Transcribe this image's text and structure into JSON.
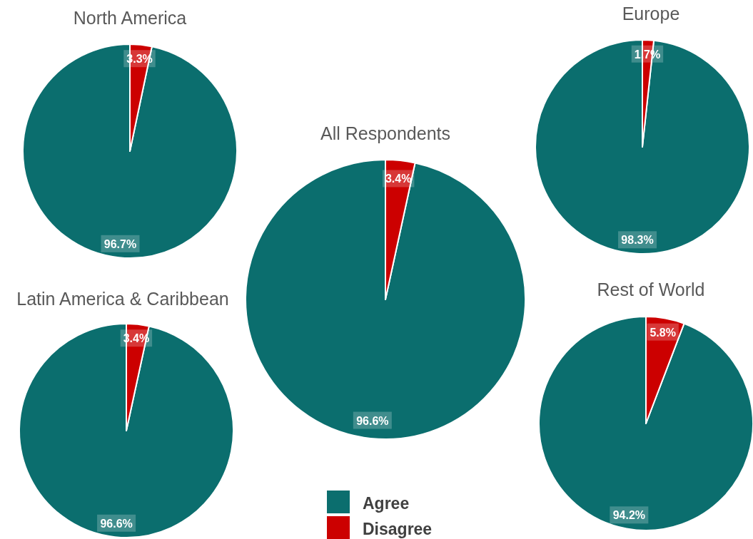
{
  "chart_data": [
    {
      "type": "pie",
      "title": "North America",
      "categories": [
        null,
        null
      ],
      "values": [
        96.7,
        3.3
      ],
      "colors": [
        "#0b6e6e",
        "#cc0000"
      ],
      "value_labels": [
        "96.7%",
        "3.3%"
      ]
    },
    {
      "type": "pie",
      "title": "Europe",
      "categories": [
        null,
        null
      ],
      "values": [
        98.3,
        1.7
      ],
      "colors": [
        "#0b6e6e",
        "#cc0000"
      ],
      "value_labels": [
        "98.3%",
        "1.7%"
      ]
    },
    {
      "type": "pie",
      "title": "All Respondents",
      "categories": [
        "Agree",
        "Disagree"
      ],
      "values": [
        96.6,
        3.4
      ],
      "colors": [
        "#0b6e6e",
        "#cc0000"
      ],
      "value_labels": [
        "96.6%",
        "3.4%"
      ],
      "legend": "bottom"
    },
    {
      "type": "pie",
      "title": "Latin America & Caribbean",
      "categories": [
        null,
        null
      ],
      "values": [
        96.6,
        3.4
      ],
      "colors": [
        "#0b6e6e",
        "#cc0000"
      ],
      "value_labels": [
        "96.6%",
        "3.4%"
      ]
    },
    {
      "type": "pie",
      "title": "Rest of World",
      "categories": [
        null,
        null
      ],
      "values": [
        94.2,
        5.8
      ],
      "colors": [
        "#0b6e6e",
        "#cc0000"
      ],
      "value_labels": [
        "94.2%",
        "5.8%"
      ]
    }
  ]
}
